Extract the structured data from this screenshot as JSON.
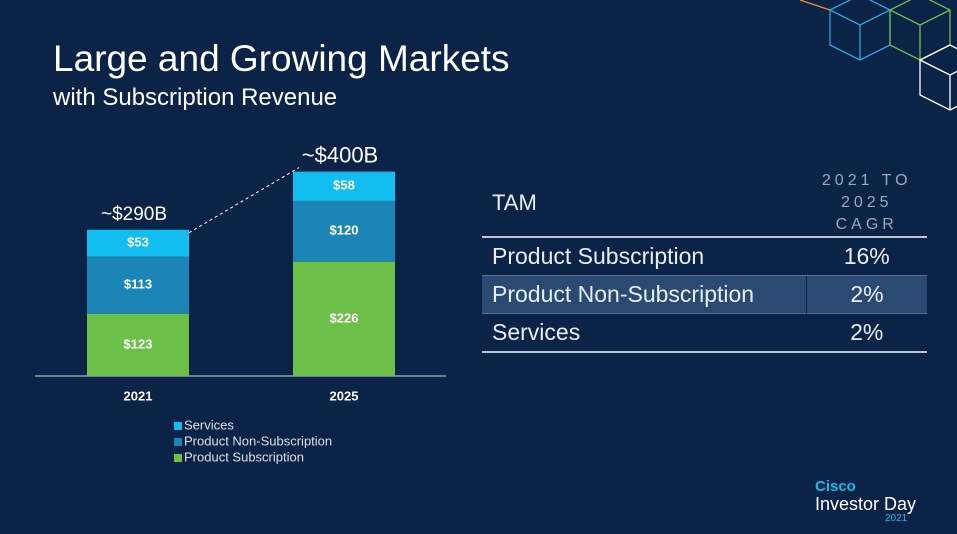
{
  "title": "Large and Growing Markets",
  "subtitle": "with Subscription Revenue",
  "chart_data": {
    "type": "bar",
    "stacked": true,
    "categories": [
      "2021",
      "2025"
    ],
    "series": [
      {
        "name": "Product Subscription",
        "color": "#6cc04a",
        "values": [
          123,
          226
        ],
        "value_labels": [
          "$123",
          "$226"
        ]
      },
      {
        "name": "Product Non-Subscription",
        "color": "#1b86b5",
        "values": [
          113,
          120
        ],
        "value_labels": [
          "$113",
          "$120"
        ]
      },
      {
        "name": "Services",
        "color": "#12bdef",
        "values": [
          53,
          58
        ],
        "value_labels": [
          "$53",
          "$58"
        ]
      }
    ],
    "annotations": [
      "~$290B",
      "~$400B"
    ]
  },
  "table": {
    "header": [
      "TAM",
      "2021 TO 2025 CAGR"
    ],
    "rows": [
      [
        "Product Subscription",
        "16%"
      ],
      [
        "Product Non-Subscription",
        "2%"
      ],
      [
        "Services",
        "2%"
      ]
    ]
  },
  "footer": {
    "brand": "Cisco",
    "event": "Investor Day",
    "year": "2021"
  }
}
